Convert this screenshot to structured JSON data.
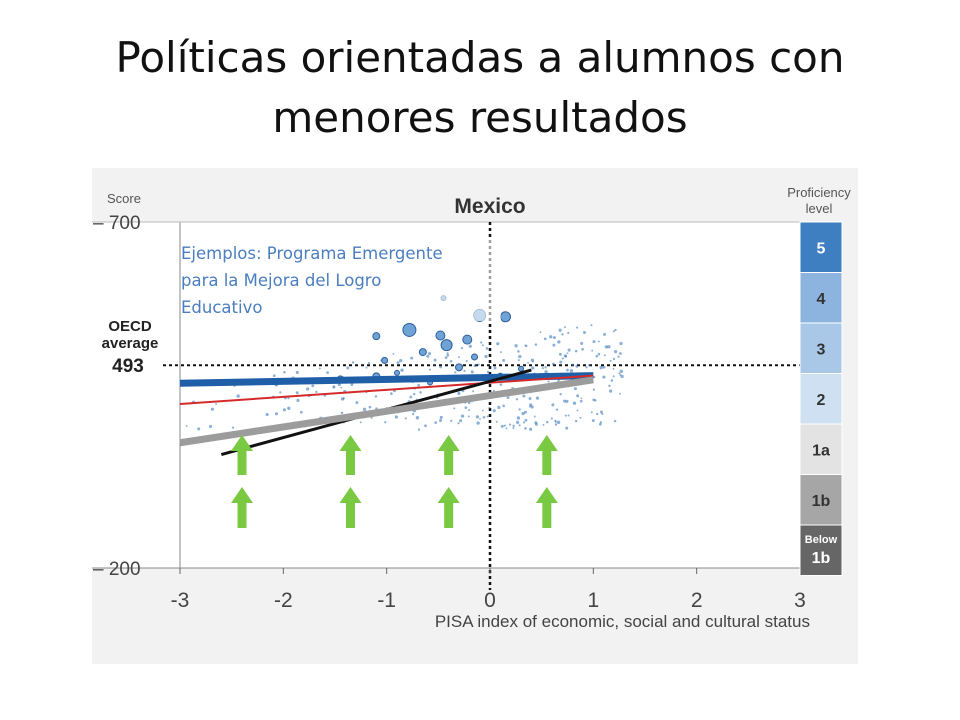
{
  "slide": {
    "title_line1": "Políticas orientadas a alumnos con",
    "title_line2": "menores resultados"
  },
  "chart_data": {
    "type": "scatter",
    "title": "Mexico",
    "xlabel": "PISA index of economic, social and cultural status",
    "ylabel": "Score",
    "xlim": [
      -3,
      3
    ],
    "ylim": [
      200,
      700
    ],
    "x_ticks": [
      "-3",
      "-2",
      "-1",
      "0",
      "1",
      "2",
      "3"
    ],
    "y_ticks": [
      {
        "value": 700,
        "label": "– 700"
      },
      {
        "value": 200,
        "label": "– 200"
      }
    ],
    "oecd_average": {
      "label_line1": "OECD",
      "label_line2": "average",
      "value": 493,
      "value_label": "493"
    },
    "reference_x": 0,
    "annotation": [
      "Ejemplos: Programa Emergente",
      "para la Mejora del Logro",
      "Educativo"
    ],
    "trend_lines": [
      {
        "id": "blue",
        "color": "#1f5fa8",
        "width": 7,
        "x": [
          -3,
          1
        ],
        "y": [
          467,
          478
        ]
      },
      {
        "id": "red",
        "color": "#d42a2a",
        "width": 2,
        "x": [
          -3,
          1
        ],
        "y": [
          437,
          478
        ]
      },
      {
        "id": "black",
        "color": "#111111",
        "width": 3,
        "x": [
          -2.6,
          0.4
        ],
        "y": [
          364,
          486
        ]
      },
      {
        "id": "grey",
        "color": "#9c9c9c",
        "width": 7,
        "x": [
          -3,
          1
        ],
        "y": [
          381,
          472
        ]
      }
    ],
    "proficiency": {
      "title_line1": "Proficiency",
      "title_line2": "level",
      "levels": [
        {
          "label": "5",
          "color": "#3d7fc0",
          "text": "#ffffff"
        },
        {
          "label": "4",
          "color": "#8db4de",
          "text": "#333333"
        },
        {
          "label": "3",
          "color": "#a9c8e8",
          "text": "#333333"
        },
        {
          "label": "2",
          "color": "#cfe0f2",
          "text": "#333333"
        },
        {
          "label": "1a",
          "color": "#e3e3e3",
          "text": "#333333"
        },
        {
          "label": "1b",
          "color": "#a6a6a6",
          "text": "#333333"
        },
        {
          "label_line1": "Below",
          "label_line2": "1b",
          "color": "#666666",
          "text": "#ffffff"
        }
      ]
    },
    "arrows": {
      "color": "#7ac943",
      "x": [
        -2.4,
        -1.35,
        -0.4,
        0.55
      ]
    },
    "bubbles": [
      {
        "x": -0.1,
        "y": 565,
        "r": 6
      },
      {
        "x": 0.15,
        "y": 563,
        "r": 5
      },
      {
        "x": -0.78,
        "y": 544,
        "r": 6.5
      },
      {
        "x": -0.48,
        "y": 536,
        "r": 4.5
      },
      {
        "x": -0.42,
        "y": 522,
        "r": 5.5
      },
      {
        "x": -0.22,
        "y": 530,
        "r": 4.5
      },
      {
        "x": -1.1,
        "y": 535,
        "r": 3.5
      },
      {
        "x": -0.65,
        "y": 512,
        "r": 3.5
      },
      {
        "x": -1.02,
        "y": 500,
        "r": 3
      },
      {
        "x": -0.3,
        "y": 490,
        "r": 3.5
      },
      {
        "x": -0.15,
        "y": 505,
        "r": 3
      },
      {
        "x": 0.3,
        "y": 488,
        "r": 2.5
      },
      {
        "x": -1.45,
        "y": 474,
        "r": 2.5
      },
      {
        "x": -0.9,
        "y": 482,
        "r": 2.5
      },
      {
        "x": -0.58,
        "y": 468,
        "r": 2.5
      },
      {
        "x": 0.1,
        "y": 478,
        "r": 2.5
      },
      {
        "x": -0.45,
        "y": 590,
        "r": 2.5
      },
      {
        "x": -1.1,
        "y": 477,
        "r": 3.5
      }
    ]
  },
  "colors": {
    "background": "#f2f2f2",
    "plot_background": "#ffffff",
    "points": "#2e6fb5",
    "reference_lines": "#111111"
  }
}
